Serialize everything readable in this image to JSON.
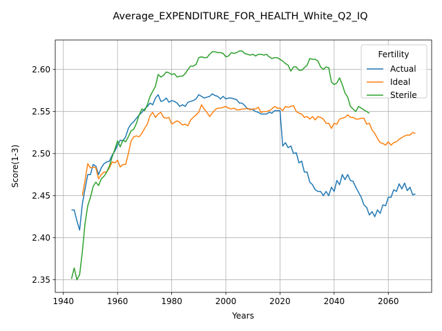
{
  "chart_data": {
    "type": "line",
    "title": "Average_EXPENDITURE_FOR_HEALTH_White_Q2_IQ",
    "xlabel": "Years",
    "ylabel": "Score(1-3)",
    "xlim": [
      1937,
      2076
    ],
    "ylim": [
      2.335,
      2.635
    ],
    "xticks": [
      1940,
      1960,
      1980,
      2000,
      2020,
      2040,
      2060
    ],
    "yticks": [
      2.35,
      2.4,
      2.45,
      2.5,
      2.55,
      2.6
    ],
    "grid": true,
    "legend": {
      "title": "Fertility",
      "placement": "top-right"
    },
    "series": [
      {
        "name": "Actual",
        "color": "#1f77b4",
        "x": [
          1943,
          1944,
          1945,
          1946,
          1947,
          1948,
          1949,
          1950,
          1951,
          1952,
          1953,
          1954,
          1955,
          1956,
          1957,
          1958,
          1959,
          1960,
          1961,
          1962,
          1963,
          1964,
          1965,
          1966,
          1967,
          1968,
          1969,
          1970,
          1971,
          1972,
          1973,
          1974,
          1975,
          1976,
          1977,
          1978,
          1979,
          1980,
          1981,
          1982,
          1983,
          1984,
          1985,
          1986,
          1987,
          1988,
          1989,
          1990,
          1991,
          1992,
          1993,
          1994,
          1995,
          1996,
          1997,
          1998,
          1999,
          2000,
          2001,
          2002,
          2003,
          2004,
          2005,
          2006,
          2007,
          2008,
          2009,
          2010,
          2011,
          2012,
          2013,
          2014,
          2015,
          2016,
          2017,
          2018,
          2019,
          2020,
          2021,
          2022,
          2023,
          2024,
          2025,
          2026,
          2027,
          2028,
          2029,
          2030,
          2031,
          2032,
          2033,
          2034,
          2035,
          2036,
          2037,
          2038,
          2039,
          2040,
          2041,
          2042,
          2043,
          2044,
          2045,
          2046,
          2047,
          2048,
          2049,
          2050,
          2051,
          2052,
          2053,
          2054,
          2055,
          2056,
          2057,
          2058,
          2059,
          2060,
          2061,
          2062,
          2063,
          2064,
          2065,
          2066,
          2067,
          2068,
          2069,
          2070
        ],
        "y": [
          2.433,
          2.433,
          2.42,
          2.409,
          2.44,
          2.458,
          2.475,
          2.475,
          2.487,
          2.485,
          2.475,
          2.483,
          2.488,
          2.49,
          2.491,
          2.498,
          2.503,
          2.51,
          2.516,
          2.515,
          2.52,
          2.53,
          2.535,
          2.538,
          2.542,
          2.546,
          2.549,
          2.553,
          2.556,
          2.56,
          2.558,
          2.566,
          2.57,
          2.562,
          2.563,
          2.566,
          2.561,
          2.563,
          2.562,
          2.56,
          2.556,
          2.558,
          2.556,
          2.561,
          2.562,
          2.563,
          2.565,
          2.57,
          2.568,
          2.566,
          2.567,
          2.568,
          2.571,
          2.569,
          2.568,
          2.565,
          2.568,
          2.565,
          2.566,
          2.566,
          2.565,
          2.564,
          2.56,
          2.56,
          2.557,
          2.553,
          2.553,
          2.552,
          2.55,
          2.549,
          2.547,
          2.547,
          2.547,
          2.549,
          2.548,
          2.551,
          2.551,
          2.551,
          2.509,
          2.513,
          2.507,
          2.509,
          2.5,
          2.501,
          2.489,
          2.491,
          2.478,
          2.478,
          2.466,
          2.463,
          2.457,
          2.455,
          2.455,
          2.45,
          2.455,
          2.45,
          2.46,
          2.455,
          2.468,
          2.463,
          2.475,
          2.469,
          2.475,
          2.468,
          2.467,
          2.46,
          2.454,
          2.448,
          2.439,
          2.436,
          2.427,
          2.431,
          2.425,
          2.433,
          2.429,
          2.439,
          2.438,
          2.448,
          2.448,
          2.457,
          2.455,
          2.464,
          2.458,
          2.465,
          2.456,
          2.46,
          2.451,
          2.452
        ]
      },
      {
        "name": "Ideal",
        "color": "#ff7f0e",
        "x": [
          1947,
          1948,
          1949,
          1950,
          1951,
          1952,
          1953,
          1954,
          1955,
          1956,
          1957,
          1958,
          1959,
          1960,
          1961,
          1962,
          1963,
          1964,
          1965,
          1966,
          1967,
          1968,
          1969,
          1970,
          1971,
          1972,
          1973,
          1974,
          1975,
          1976,
          1977,
          1978,
          1979,
          1980,
          1981,
          1982,
          1983,
          1984,
          1985,
          1986,
          1987,
          1988,
          1989,
          1990,
          1991,
          1992,
          1993,
          1994,
          1995,
          1996,
          1997,
          1998,
          1999,
          2000,
          2001,
          2002,
          2003,
          2004,
          2005,
          2006,
          2007,
          2008,
          2009,
          2010,
          2011,
          2012,
          2013,
          2014,
          2015,
          2016,
          2017,
          2018,
          2019,
          2020,
          2021,
          2022,
          2023,
          2024,
          2025,
          2026,
          2027,
          2028,
          2029,
          2030,
          2031,
          2032,
          2033,
          2034,
          2035,
          2036,
          2037,
          2038,
          2039,
          2040,
          2041,
          2042,
          2043,
          2044,
          2045,
          2046,
          2047,
          2048,
          2049,
          2050,
          2051,
          2052,
          2053,
          2054,
          2055,
          2056,
          2057,
          2058,
          2059,
          2060,
          2061,
          2062,
          2063,
          2064,
          2065,
          2066,
          2067,
          2068,
          2069,
          2070
        ],
        "y": [
          2.45,
          2.468,
          2.488,
          2.483,
          2.484,
          2.483,
          2.47,
          2.475,
          2.478,
          2.478,
          2.483,
          2.49,
          2.489,
          2.492,
          2.484,
          2.487,
          2.487,
          2.5,
          2.515,
          2.52,
          2.521,
          2.52,
          2.524,
          2.53,
          2.535,
          2.545,
          2.549,
          2.543,
          2.547,
          2.549,
          2.543,
          2.542,
          2.543,
          2.535,
          2.537,
          2.539,
          2.537,
          2.534,
          2.535,
          2.533,
          2.54,
          2.543,
          2.546,
          2.549,
          2.558,
          2.553,
          2.549,
          2.544,
          2.548,
          2.552,
          2.554,
          2.554,
          2.555,
          2.556,
          2.554,
          2.553,
          2.554,
          2.552,
          2.552,
          2.553,
          2.553,
          2.554,
          2.552,
          2.553,
          2.553,
          2.555,
          2.549,
          2.55,
          2.55,
          2.551,
          2.553,
          2.556,
          2.554,
          2.554,
          2.551,
          2.556,
          2.555,
          2.556,
          2.557,
          2.55,
          2.548,
          2.547,
          2.543,
          2.544,
          2.541,
          2.544,
          2.54,
          2.544,
          2.543,
          2.541,
          2.536,
          2.536,
          2.53,
          2.536,
          2.535,
          2.541,
          2.542,
          2.543,
          2.546,
          2.543,
          2.543,
          2.541,
          2.541,
          2.542,
          2.542,
          2.535,
          2.536,
          2.528,
          2.524,
          2.518,
          2.513,
          2.512,
          2.51,
          2.514,
          2.51,
          2.513,
          2.514,
          2.517,
          2.519,
          2.521,
          2.522,
          2.522,
          2.525,
          2.524
        ]
      },
      {
        "name": "Sterile",
        "color": "#2ca02c",
        "x": [
          1943,
          1944,
          1945,
          1946,
          1947,
          1948,
          1949,
          1950,
          1951,
          1952,
          1953,
          1954,
          1955,
          1956,
          1957,
          1958,
          1959,
          1960,
          1961,
          1962,
          1963,
          1964,
          1965,
          1966,
          1967,
          1968,
          1969,
          1970,
          1971,
          1972,
          1973,
          1974,
          1975,
          1976,
          1977,
          1978,
          1979,
          1980,
          1981,
          1982,
          1983,
          1984,
          1985,
          1986,
          1987,
          1988,
          1989,
          1990,
          1991,
          1992,
          1993,
          1994,
          1995,
          1996,
          1997,
          1998,
          1999,
          2000,
          2001,
          2002,
          2003,
          2004,
          2005,
          2006,
          2007,
          2008,
          2009,
          2010,
          2011,
          2012,
          2013,
          2014,
          2015,
          2016,
          2017,
          2018,
          2019,
          2020,
          2021,
          2022,
          2023,
          2024,
          2025,
          2026,
          2027,
          2028,
          2029,
          2030,
          2031,
          2032,
          2033,
          2034,
          2035,
          2036,
          2037,
          2038,
          2039,
          2040,
          2041,
          2042,
          2043,
          2044,
          2045,
          2046,
          2047,
          2048,
          2049,
          2050,
          2051,
          2052,
          2053
        ],
        "y": [
          2.351,
          2.364,
          2.35,
          2.356,
          2.383,
          2.417,
          2.438,
          2.448,
          2.461,
          2.466,
          2.462,
          2.47,
          2.473,
          2.478,
          2.485,
          2.496,
          2.505,
          2.515,
          2.508,
          2.516,
          2.514,
          2.52,
          2.527,
          2.529,
          2.536,
          2.546,
          2.553,
          2.551,
          2.558,
          2.568,
          2.574,
          2.58,
          2.594,
          2.591,
          2.593,
          2.597,
          2.596,
          2.594,
          2.595,
          2.591,
          2.592,
          2.592,
          2.595,
          2.6,
          2.604,
          2.604,
          2.606,
          2.614,
          2.615,
          2.614,
          2.614,
          2.618,
          2.621,
          2.621,
          2.62,
          2.62,
          2.619,
          2.615,
          2.616,
          2.62,
          2.619,
          2.62,
          2.622,
          2.622,
          2.619,
          2.618,
          2.617,
          2.618,
          2.616,
          2.618,
          2.618,
          2.617,
          2.618,
          2.615,
          2.613,
          2.614,
          2.614,
          2.612,
          2.61,
          2.607,
          2.605,
          2.598,
          2.603,
          2.603,
          2.599,
          2.599,
          2.602,
          2.605,
          2.613,
          2.612,
          2.612,
          2.61,
          2.603,
          2.6,
          2.603,
          2.602,
          2.585,
          2.582,
          2.584,
          2.59,
          2.582,
          2.572,
          2.567,
          2.556,
          2.553,
          2.55,
          2.556,
          2.554,
          2.552,
          2.55,
          2.548
        ]
      }
    ]
  }
}
